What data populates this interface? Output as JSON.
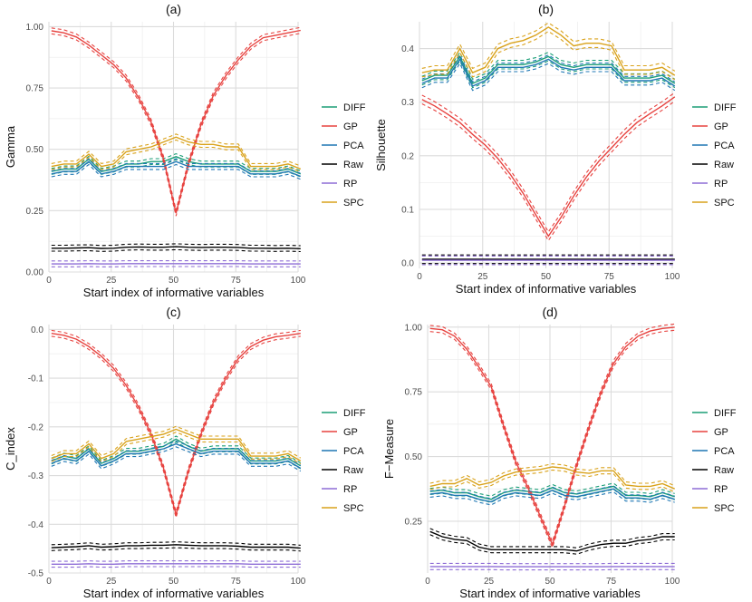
{
  "colors": {
    "DIFF": "#1b9e77",
    "GP": "#e7423f",
    "PCA": "#1f77b4",
    "Raw": "#000000",
    "RP": "#8e6dd6",
    "SPC": "#d9a21b"
  },
  "chart_data": [
    {
      "type": "line",
      "title": "(a)",
      "xlabel": "Start index of informative variables",
      "ylabel": "Gamma",
      "xlim": [
        0,
        100
      ],
      "ylim": [
        0,
        1.02
      ],
      "xticks": [
        0,
        25,
        50,
        75,
        100
      ],
      "yticks": [
        0,
        0.25,
        0.5,
        0.75,
        1
      ],
      "ytick_labels": [
        "0.00",
        "0.25",
        "0.50",
        "0.75",
        "1.00"
      ],
      "grid": true,
      "legend": "right",
      "band": 0.012,
      "x": [
        1,
        6,
        11,
        16,
        21,
        26,
        31,
        36,
        41,
        46,
        51,
        56,
        61,
        66,
        71,
        76,
        81,
        86,
        91,
        96,
        101
      ],
      "series": [
        {
          "name": "DIFF",
          "values": [
            0.41,
            0.42,
            0.42,
            0.46,
            0.41,
            0.42,
            0.44,
            0.44,
            0.45,
            0.45,
            0.47,
            0.45,
            0.44,
            0.44,
            0.44,
            0.44,
            0.41,
            0.41,
            0.41,
            0.42,
            0.4
          ]
        },
        {
          "name": "GP",
          "values": [
            0.983,
            0.975,
            0.958,
            0.925,
            0.885,
            0.845,
            0.79,
            0.71,
            0.61,
            0.46,
            0.24,
            0.44,
            0.6,
            0.72,
            0.8,
            0.865,
            0.92,
            0.955,
            0.965,
            0.975,
            0.985
          ]
        },
        {
          "name": "PCA",
          "values": [
            0.4,
            0.41,
            0.41,
            0.45,
            0.4,
            0.41,
            0.43,
            0.43,
            0.43,
            0.43,
            0.45,
            0.43,
            0.43,
            0.43,
            0.43,
            0.43,
            0.4,
            0.4,
            0.4,
            0.41,
            0.39
          ]
        },
        {
          "name": "Raw",
          "values": [
            0.097,
            0.097,
            0.098,
            0.099,
            0.096,
            0.097,
            0.101,
            0.102,
            0.101,
            0.101,
            0.103,
            0.101,
            0.1,
            0.101,
            0.101,
            0.1,
            0.097,
            0.097,
            0.096,
            0.097,
            0.095
          ]
        },
        {
          "name": "RP",
          "values": [
            0.033,
            0.033,
            0.033,
            0.034,
            0.033,
            0.033,
            0.034,
            0.034,
            0.034,
            0.034,
            0.034,
            0.034,
            0.034,
            0.034,
            0.034,
            0.034,
            0.033,
            0.033,
            0.033,
            0.033,
            0.033
          ]
        },
        {
          "name": "SPC",
          "values": [
            0.43,
            0.44,
            0.44,
            0.48,
            0.43,
            0.44,
            0.49,
            0.5,
            0.51,
            0.53,
            0.55,
            0.53,
            0.52,
            0.52,
            0.51,
            0.51,
            0.43,
            0.43,
            0.43,
            0.44,
            0.42
          ]
        }
      ]
    },
    {
      "type": "line",
      "title": "(b)",
      "xlabel": "Start index of informative variables",
      "ylabel": "Silhouette",
      "xlim": [
        0,
        100
      ],
      "ylim": [
        -0.01,
        0.45
      ],
      "xticks": [
        0,
        25,
        50,
        75,
        100
      ],
      "yticks": [
        0,
        0.1,
        0.2,
        0.3,
        0.4
      ],
      "ytick_labels": [
        "0.0",
        "0.1",
        "0.2",
        "0.3",
        "0.4"
      ],
      "grid": true,
      "legend": "right",
      "band": 0.008,
      "x": [
        1,
        6,
        11,
        16,
        21,
        26,
        31,
        36,
        41,
        46,
        51,
        56,
        61,
        66,
        71,
        76,
        81,
        86,
        91,
        96,
        101
      ],
      "series": [
        {
          "name": "DIFF",
          "values": [
            0.34,
            0.35,
            0.35,
            0.385,
            0.335,
            0.345,
            0.37,
            0.37,
            0.37,
            0.375,
            0.385,
            0.37,
            0.365,
            0.37,
            0.37,
            0.37,
            0.345,
            0.345,
            0.345,
            0.35,
            0.335
          ]
        },
        {
          "name": "GP",
          "values": [
            0.305,
            0.293,
            0.278,
            0.262,
            0.24,
            0.22,
            0.195,
            0.165,
            0.13,
            0.09,
            0.05,
            0.085,
            0.125,
            0.16,
            0.19,
            0.215,
            0.24,
            0.262,
            0.278,
            0.293,
            0.31
          ]
        },
        {
          "name": "PCA",
          "values": [
            0.335,
            0.345,
            0.345,
            0.38,
            0.33,
            0.34,
            0.365,
            0.365,
            0.365,
            0.37,
            0.38,
            0.365,
            0.36,
            0.365,
            0.365,
            0.365,
            0.34,
            0.34,
            0.34,
            0.345,
            0.33
          ]
        },
        {
          "name": "Raw",
          "values": [
            0.007,
            0.007,
            0.007,
            0.007,
            0.007,
            0.007,
            0.007,
            0.007,
            0.007,
            0.007,
            0.007,
            0.007,
            0.007,
            0.007,
            0.007,
            0.007,
            0.007,
            0.007,
            0.007,
            0.007,
            0.007
          ]
        },
        {
          "name": "RP",
          "values": [
            0.005,
            0.005,
            0.005,
            0.005,
            0.005,
            0.005,
            0.005,
            0.005,
            0.005,
            0.005,
            0.005,
            0.005,
            0.005,
            0.005,
            0.005,
            0.005,
            0.005,
            0.005,
            0.005,
            0.005,
            0.005
          ]
        },
        {
          "name": "SPC",
          "values": [
            0.355,
            0.36,
            0.36,
            0.4,
            0.355,
            0.365,
            0.4,
            0.41,
            0.415,
            0.425,
            0.44,
            0.425,
            0.405,
            0.41,
            0.41,
            0.405,
            0.36,
            0.36,
            0.36,
            0.365,
            0.35
          ]
        }
      ]
    },
    {
      "type": "line",
      "title": "(c)",
      "xlabel": "Start index of informative variables",
      "ylabel": "C_index",
      "xlim": [
        0,
        100
      ],
      "ylim": [
        -0.5,
        0.01
      ],
      "xticks": [
        0,
        25,
        50,
        75,
        100
      ],
      "yticks": [
        -0.5,
        -0.4,
        -0.3,
        -0.2,
        -0.1,
        0
      ],
      "ytick_labels": [
        "-0.5",
        "-0.4",
        "-0.3",
        "-0.2",
        "-0.1",
        "0.0"
      ],
      "grid": true,
      "legend": "right",
      "band": 0.006,
      "x": [
        1,
        6,
        11,
        16,
        21,
        26,
        31,
        36,
        41,
        46,
        51,
        56,
        61,
        66,
        71,
        76,
        81,
        86,
        91,
        96,
        101
      ],
      "series": [
        {
          "name": "DIFF",
          "values": [
            -0.27,
            -0.26,
            -0.265,
            -0.245,
            -0.275,
            -0.265,
            -0.25,
            -0.25,
            -0.245,
            -0.24,
            -0.225,
            -0.24,
            -0.25,
            -0.245,
            -0.245,
            -0.245,
            -0.27,
            -0.27,
            -0.27,
            -0.265,
            -0.28
          ]
        },
        {
          "name": "GP",
          "values": [
            -0.008,
            -0.012,
            -0.02,
            -0.035,
            -0.055,
            -0.08,
            -0.115,
            -0.16,
            -0.215,
            -0.285,
            -0.38,
            -0.29,
            -0.215,
            -0.15,
            -0.1,
            -0.06,
            -0.035,
            -0.022,
            -0.015,
            -0.012,
            -0.008
          ]
        },
        {
          "name": "PCA",
          "values": [
            -0.275,
            -0.265,
            -0.27,
            -0.25,
            -0.28,
            -0.27,
            -0.255,
            -0.255,
            -0.25,
            -0.245,
            -0.235,
            -0.245,
            -0.255,
            -0.25,
            -0.25,
            -0.25,
            -0.275,
            -0.275,
            -0.275,
            -0.27,
            -0.285
          ]
        },
        {
          "name": "Raw",
          "values": [
            -0.448,
            -0.447,
            -0.446,
            -0.444,
            -0.447,
            -0.446,
            -0.444,
            -0.444,
            -0.443,
            -0.443,
            -0.442,
            -0.443,
            -0.444,
            -0.444,
            -0.444,
            -0.445,
            -0.447,
            -0.447,
            -0.447,
            -0.447,
            -0.449
          ]
        },
        {
          "name": "RP",
          "values": [
            -0.482,
            -0.482,
            -0.482,
            -0.481,
            -0.482,
            -0.482,
            -0.481,
            -0.481,
            -0.481,
            -0.481,
            -0.481,
            -0.481,
            -0.481,
            -0.481,
            -0.481,
            -0.481,
            -0.482,
            -0.482,
            -0.482,
            -0.482,
            -0.482
          ]
        },
        {
          "name": "SPC",
          "values": [
            -0.265,
            -0.255,
            -0.255,
            -0.235,
            -0.265,
            -0.255,
            -0.23,
            -0.225,
            -0.22,
            -0.215,
            -0.205,
            -0.215,
            -0.225,
            -0.225,
            -0.225,
            -0.225,
            -0.26,
            -0.26,
            -0.26,
            -0.255,
            -0.27
          ]
        }
      ]
    },
    {
      "type": "line",
      "title": "(d)",
      "xlabel": "Start index of informative variables",
      "ylabel": "F−Measure",
      "xlim": [
        0,
        100
      ],
      "ylim": [
        0.05,
        1.01
      ],
      "xticks": [
        0,
        25,
        50,
        75,
        100
      ],
      "yticks": [
        0.25,
        0.5,
        0.75,
        1
      ],
      "ytick_labels": [
        "0.25",
        "0.50",
        "0.75",
        "1.00"
      ],
      "grid": true,
      "legend": "right",
      "band": 0.012,
      "x": [
        1,
        6,
        11,
        16,
        21,
        26,
        31,
        36,
        41,
        46,
        51,
        56,
        61,
        66,
        71,
        76,
        81,
        86,
        91,
        96,
        101
      ],
      "series": [
        {
          "name": "DIFF",
          "values": [
            0.365,
            0.37,
            0.36,
            0.36,
            0.345,
            0.335,
            0.36,
            0.37,
            0.365,
            0.36,
            0.38,
            0.36,
            0.355,
            0.365,
            0.375,
            0.385,
            0.35,
            0.35,
            0.345,
            0.36,
            0.345
          ]
        },
        {
          "name": "GP",
          "values": [
            0.995,
            0.99,
            0.965,
            0.915,
            0.845,
            0.77,
            0.62,
            0.48,
            0.38,
            0.27,
            0.16,
            0.31,
            0.47,
            0.615,
            0.75,
            0.86,
            0.925,
            0.965,
            0.985,
            0.995,
            1.0
          ]
        },
        {
          "name": "PCA",
          "values": [
            0.355,
            0.36,
            0.35,
            0.35,
            0.335,
            0.325,
            0.35,
            0.36,
            0.355,
            0.35,
            0.37,
            0.35,
            0.345,
            0.355,
            0.365,
            0.375,
            0.34,
            0.34,
            0.335,
            0.35,
            0.335
          ]
        },
        {
          "name": "Raw",
          "values": [
            0.21,
            0.19,
            0.18,
            0.175,
            0.15,
            0.14,
            0.14,
            0.14,
            0.14,
            0.14,
            0.14,
            0.14,
            0.135,
            0.15,
            0.16,
            0.165,
            0.165,
            0.175,
            0.18,
            0.19,
            0.19
          ]
        },
        {
          "name": "RP",
          "values": [
            0.075,
            0.075,
            0.075,
            0.075,
            0.075,
            0.075,
            0.074,
            0.074,
            0.074,
            0.074,
            0.074,
            0.074,
            0.074,
            0.074,
            0.074,
            0.075,
            0.075,
            0.075,
            0.075,
            0.075,
            0.075
          ]
        },
        {
          "name": "SPC",
          "values": [
            0.385,
            0.395,
            0.395,
            0.415,
            0.39,
            0.4,
            0.425,
            0.44,
            0.445,
            0.45,
            0.46,
            0.455,
            0.44,
            0.435,
            0.445,
            0.445,
            0.39,
            0.385,
            0.385,
            0.395,
            0.375
          ]
        }
      ]
    }
  ]
}
